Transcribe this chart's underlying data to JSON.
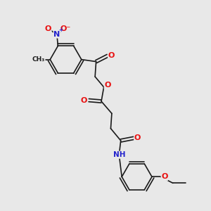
{
  "background_color": "#e8e8e8",
  "bond_color": "#1a1a1a",
  "oxygen_color": "#e81010",
  "nitrogen_color": "#2222cc",
  "carbon_color": "#1a1a1a",
  "fig_width": 3.0,
  "fig_height": 3.0,
  "dpi": 100,
  "line_width": 1.2,
  "font_size": 7.0,
  "xlim": [
    0,
    10
  ],
  "ylim": [
    0,
    10
  ]
}
